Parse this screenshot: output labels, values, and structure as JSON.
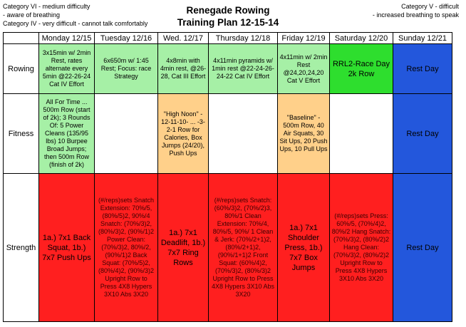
{
  "legend_left": [
    "Category VI - medium difficulty",
    "- aware of breathing",
    "Category IV - very difficult - cannot talk comfortably"
  ],
  "legend_right": [
    "Category V - difficult",
    "- increased breathing to speak"
  ],
  "title_line1": "Renegade Rowing",
  "title_line2": "Training Plan 12-15-14",
  "days": [
    "Monday 12/15",
    "Tuesday 12/16",
    "Wed. 12/17",
    "Thursday 12/18",
    "Friday 12/19",
    "Saturday 12/20",
    "Sunday 12/21"
  ],
  "rows": {
    "rowing": {
      "label": "Rowing",
      "cells": [
        "3x15min w/ 2min Rest, rates alternate every 5min @22-26-24 Cat IV Effort",
        "6x650m w/ 1:45 Rest; Focus: race Strategy",
        "4x8min with 4min rest, @26-28, Cat III Effort",
        "4x11min pyramids w/ 1min rest @22-24-26-24-22 Cat IV Effort",
        "4x11min w/ 2min Rest @24,20,24,20 Cat V Effort",
        "RRL2-Race Day 2k Row",
        "Rest Day"
      ]
    },
    "fitness": {
      "label": "Fitness",
      "cells": [
        "All For Time ... 500m Row (start of 2k); 3 Rounds Of: 5 Power Cleans (135/95 lbs) 10 Burpee Broad Jumps; then 500m Row (finish of 2k)",
        "",
        "\"High Noon\" - 12-11-10- ... -3-2-1 Row for Calories, Box Jumps (24/20), Push Ups",
        "",
        "\"Baseline\" - 500m Row, 40 Air Squats, 30 Sit Ups, 20 Push Ups, 10 Pull Ups",
        "",
        "Rest Day"
      ]
    },
    "strength": {
      "label": "Strength",
      "cells": [
        "1a.) 7x1 Back Squat, 1b.) 7x7 Push Ups",
        "(#/reps)sets Snatch Extension: 70%/5, (80%/5)2, 90%/4 Snatch: (70%/3)2, (80%/3)2, (90%/1)2 Power Clean: (70%/3)2, 80%/2, (90%/1)2 Back Squat: (70%/5)2, (80%/4)2, (90%/3)2 Upright Row to Press 4X8 Hypers 3X10 Abs 3X20",
        "1a.) 7x1 Deadlift, 1b.) 7x7 Ring Rows",
        "(#/reps)sets Snatch: (60%/3)2, (70%/2)3, 80%/1 Clean Extension: 70%/4, 80%/5, 90%/ 1 Clean & Jerk: (70%/2+1)2, (80%/2+1)2, (90%/1+1)2 Front Squat: (60%/4)2, (70%/3)2, (80%/3)2 Upright Row to Press 4X8 Hypers 3X10 Abs 3X20",
        "1a.) 7x1 Shoulder Press, 1b.) 7x7 Box Jumps",
        "(#/reps)sets Press: 60%/5, (70%/4)2, 80%/2 Hang Snatch: (70%/3)2, (80%/2)2 Hang Clean: (70%/3)2, (80%/2)2 Upright Row to Press 4X8 Hypers 3X10 Abs 3X20",
        "Rest Day"
      ]
    }
  },
  "colors": {
    "light_green": "#a6f0a6",
    "bright_green": "#2ede2e",
    "orange": "#ffd08a",
    "red": "#ff1f1f",
    "blue": "#2357dc"
  }
}
